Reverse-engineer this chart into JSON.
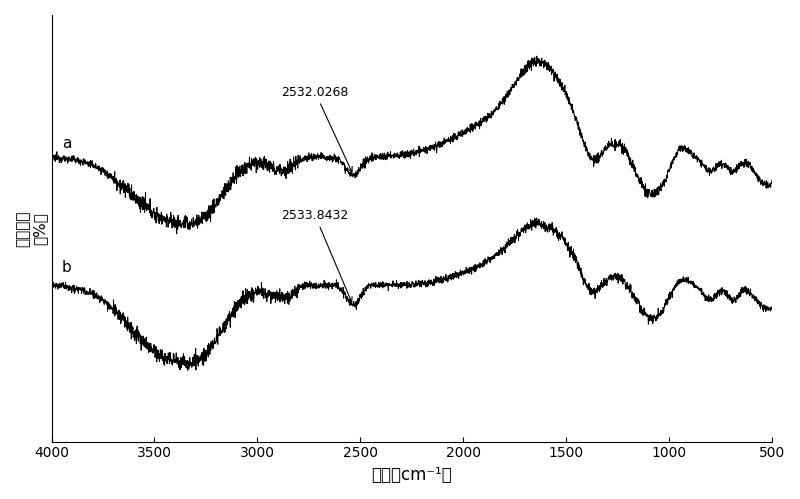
{
  "x_min": 500,
  "x_max": 4000,
  "xlabel": "波数（cm⁻¹）",
  "ylabel": "透射强度\n（%）",
  "label_a": "a",
  "label_b": "b",
  "annotation_a": "2532.0268",
  "annotation_b": "2533.8432",
  "line_color": "#000000",
  "bg_color": "#ffffff",
  "figsize": [
    8.0,
    4.99
  ],
  "dpi": 100
}
